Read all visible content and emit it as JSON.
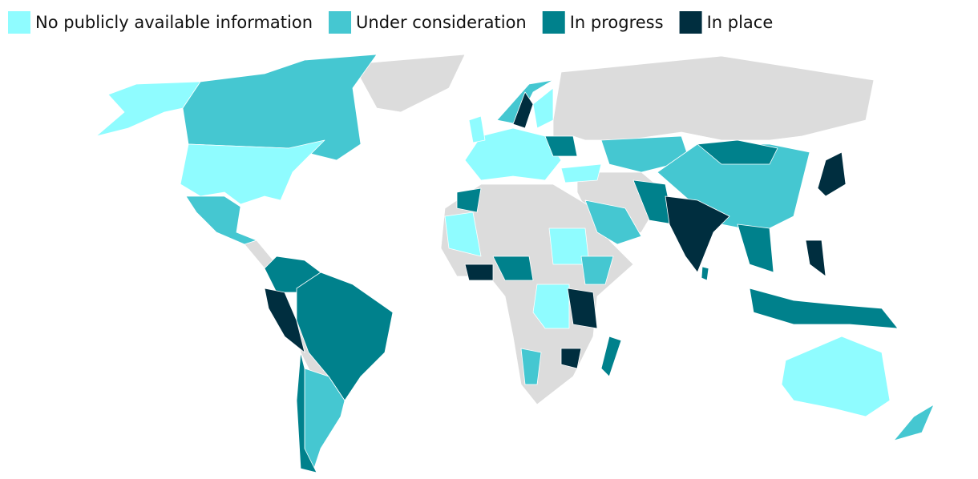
{
  "legend": [
    {
      "label": "No publicly available information",
      "color": "#8ffcff"
    },
    {
      "label": "Under consideration",
      "color": "#45c7d1"
    },
    {
      "label": "In progress",
      "color": "#00818c"
    },
    {
      "label": "In place",
      "color": "#002e3f"
    }
  ]
}
